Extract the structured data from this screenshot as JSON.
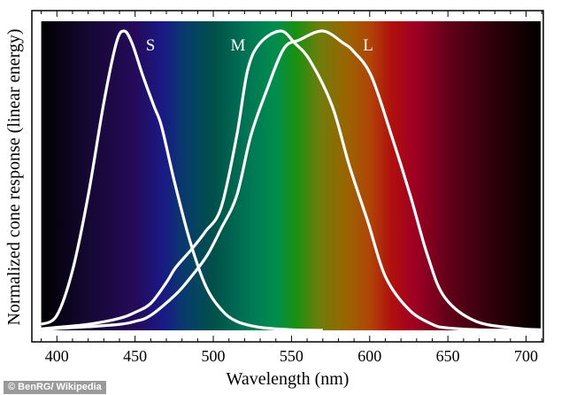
{
  "chart_data": {
    "type": "line",
    "title": "",
    "xlabel": "Wavelength (nm)",
    "ylabel": "Normalized cone response (linear energy)",
    "xlim": [
      384,
      711
    ],
    "ylim": [
      0,
      1
    ],
    "x_ticks": [
      "400",
      "450",
      "500",
      "550",
      "600",
      "650",
      "700"
    ],
    "grid": false,
    "background": "visible spectrum gradient",
    "series": [
      {
        "name": "S",
        "color": "#ffffff",
        "x": [
          390,
          400,
          410,
          420,
          430,
          438,
          443,
          448,
          455,
          462,
          467,
          475,
          485,
          495,
          505,
          515,
          530,
          550,
          570
        ],
        "y": [
          0.02,
          0.05,
          0.2,
          0.45,
          0.76,
          0.96,
          1.0,
          0.96,
          0.85,
          0.75,
          0.68,
          0.5,
          0.3,
          0.15,
          0.07,
          0.03,
          0.01,
          0.002,
          0
        ]
      },
      {
        "name": "M",
        "color": "#ffffff",
        "x": [
          390,
          400,
          420,
          440,
          450,
          460,
          470,
          476,
          486,
          495,
          505,
          515,
          522,
          530,
          543,
          552,
          562,
          576,
          587,
          599,
          610,
          625,
          640,
          650,
          670,
          700,
          710
        ],
        "y": [
          0.005,
          0.01,
          0.02,
          0.04,
          0.06,
          0.09,
          0.16,
          0.21,
          0.27,
          0.33,
          0.41,
          0.65,
          0.87,
          0.96,
          1.0,
          0.96,
          0.9,
          0.75,
          0.55,
          0.36,
          0.18,
          0.07,
          0.02,
          0.008,
          0.002,
          0,
          0
        ]
      },
      {
        "name": "L",
        "color": "#ffffff",
        "x": [
          390,
          400,
          420,
          440,
          450,
          460,
          476,
          486,
          496,
          505,
          515,
          524,
          534,
          545,
          555,
          570,
          583,
          590,
          601,
          614,
          626,
          637,
          648,
          668,
          696,
          710
        ],
        "y": [
          0.003,
          0.006,
          0.012,
          0.02,
          0.03,
          0.05,
          0.12,
          0.18,
          0.25,
          0.34,
          0.45,
          0.65,
          0.8,
          0.94,
          0.97,
          1.0,
          0.96,
          0.93,
          0.85,
          0.65,
          0.45,
          0.25,
          0.11,
          0.03,
          0.006,
          0.002
        ]
      }
    ]
  },
  "credit": "© BenRG/ Wikipedia"
}
